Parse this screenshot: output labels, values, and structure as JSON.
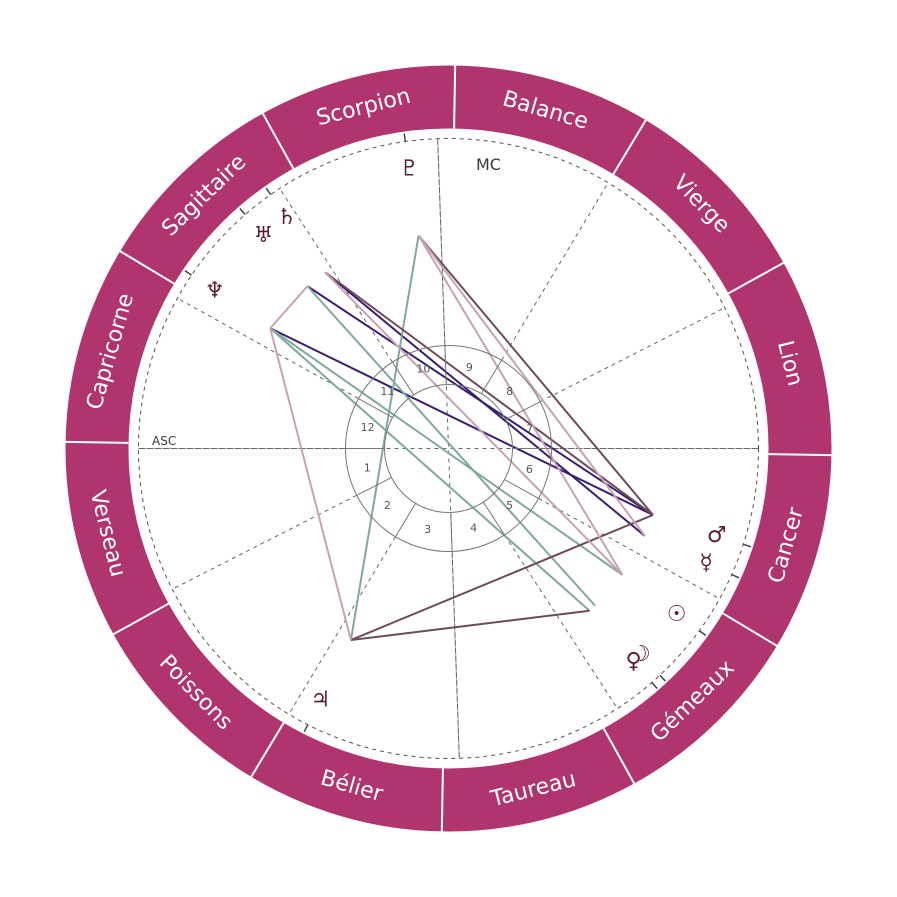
{
  "wheel": {
    "ring_color": "#b0356f",
    "divider_color": "#ffffff",
    "ascendant_longitude": 301,
    "signs": [
      {
        "key": "aries",
        "label": "Bélier",
        "start": 0
      },
      {
        "key": "taurus",
        "label": "Taureau",
        "start": 30
      },
      {
        "key": "gemini",
        "label": "Gémeaux",
        "start": 60
      },
      {
        "key": "cancer",
        "label": "Cancer",
        "start": 90
      },
      {
        "key": "leo",
        "label": "Lion",
        "start": 120
      },
      {
        "key": "virgo",
        "label": "Vierge",
        "start": 150
      },
      {
        "key": "libra",
        "label": "Balance",
        "start": 180
      },
      {
        "key": "scorpio",
        "label": "Scorpion",
        "start": 210
      },
      {
        "key": "sagittarius",
        "label": "Sagittaire",
        "start": 240
      },
      {
        "key": "capricorn",
        "label": "Capricorne",
        "start": 270
      },
      {
        "key": "aquarius",
        "label": "Verseau",
        "start": 300
      },
      {
        "key": "pisces",
        "label": "Poissons",
        "start": 330
      }
    ]
  },
  "angles": {
    "asc_label": "ASC",
    "mc_label": "MC",
    "mc_longitude": 213
  },
  "houses": [
    {
      "number": "1",
      "cusp": 301
    },
    {
      "number": "2",
      "cusp": 328
    },
    {
      "number": "3",
      "cusp": 0
    },
    {
      "number": "4",
      "cusp": 33
    },
    {
      "number": "5",
      "cusp": 64
    },
    {
      "number": "6",
      "cusp": 92
    },
    {
      "number": "7",
      "cusp": 121
    },
    {
      "number": "8",
      "cusp": 148
    },
    {
      "number": "9",
      "cusp": 180
    },
    {
      "number": "10",
      "cusp": 213
    },
    {
      "number": "11",
      "cusp": 244
    },
    {
      "number": "12",
      "cusp": 272
    }
  ],
  "planets": [
    {
      "key": "pluto",
      "glyph": "♇",
      "longitude": 219
    },
    {
      "key": "saturn",
      "glyph": "♄",
      "longitude": 246
    },
    {
      "key": "uranus",
      "glyph": "♅",
      "longitude": 252
    },
    {
      "key": "neptune",
      "glyph": "♆",
      "longitude": 267
    },
    {
      "key": "mars",
      "glyph": "♂",
      "longitude": 103
    },
    {
      "key": "mercury",
      "glyph": "☿",
      "longitude": 97
    },
    {
      "key": "sun",
      "glyph": "☉",
      "longitude": 85
    },
    {
      "key": "venus",
      "glyph": "♀",
      "longitude": 72
    },
    {
      "key": "moon",
      "glyph": "☽",
      "longitude": 74
    },
    {
      "key": "jupiter",
      "glyph": "♃",
      "longitude": 4
    }
  ],
  "aspect_colors": {
    "dark_purple": "#3b1f6e",
    "mauve": "#6d4a5c",
    "pink": "#c7a2b6",
    "teal": "#7fa99d"
  }
}
